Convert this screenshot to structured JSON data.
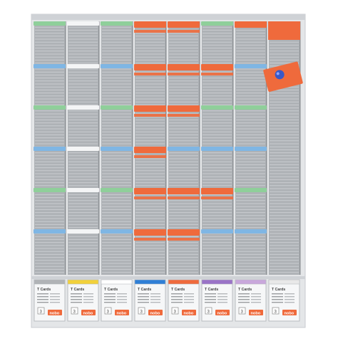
{
  "colors": {
    "frame": "#e4e6e8",
    "rail": "#cfd2d6",
    "slot": "#aeb2b6",
    "slot_line": "#c9ccd0",
    "card_green": "#8fcf9a",
    "card_blue": "#7fb6e4",
    "card_orange": "#ef6a3c",
    "card_white": "#f4f5f6",
    "magnet": "#3a58c8"
  },
  "board": {
    "columns": 8,
    "card_rows": [
      [
        "green",
        "white",
        "green",
        "orange",
        "orange",
        "green",
        "orange",
        "orange"
      ],
      [
        "blue",
        "white",
        "blue",
        "orange",
        "orange",
        "orange",
        "blue",
        ""
      ],
      [
        "green",
        "white",
        "green",
        "orange",
        "orange",
        "green",
        "green",
        ""
      ],
      [
        "blue",
        "white",
        "blue",
        "orange",
        "blue",
        "blue",
        "blue",
        ""
      ],
      [
        "green",
        "white",
        "green",
        "orange",
        "orange",
        "orange",
        "green",
        ""
      ],
      [
        "blue",
        "white",
        "blue",
        "orange",
        "orange",
        "blue",
        "blue",
        ""
      ]
    ],
    "loose_card_color": "orange",
    "magnet_icon": "push-pin-magnet"
  },
  "card_boxes": [
    {
      "label": "T Cards",
      "stripe": "#b0b3b6",
      "number": "3",
      "brand": "nobo",
      "brand_color": "#ef6a3c"
    },
    {
      "label": "T Cards",
      "stripe": "#f2d13a",
      "number": "3",
      "brand": "nobo",
      "brand_color": "#ef6a3c"
    },
    {
      "label": "T Cards",
      "stripe": "#ffffff",
      "number": "3",
      "brand": "nobo",
      "brand_color": "#ef6a3c"
    },
    {
      "label": "T Cards",
      "stripe": "#2f7fd6",
      "number": "3",
      "brand": "nobo",
      "brand_color": "#ef6a3c"
    },
    {
      "label": "T Cards",
      "stripe": "#ef6a3c",
      "number": "3",
      "brand": "nobo",
      "brand_color": "#ef6a3c"
    },
    {
      "label": "T Cards",
      "stripe": "#9a73c7",
      "number": "3",
      "brand": "nobo",
      "brand_color": "#ef6a3c"
    },
    {
      "label": "T Cards",
      "stripe": "#c9a7dc",
      "number": "3",
      "brand": "nobo",
      "brand_color": "#ef6a3c"
    },
    {
      "label": "T Cards",
      "stripe": "#e8e8e8",
      "number": "3",
      "brand": "nobo",
      "brand_color": "#ef6a3c"
    }
  ]
}
